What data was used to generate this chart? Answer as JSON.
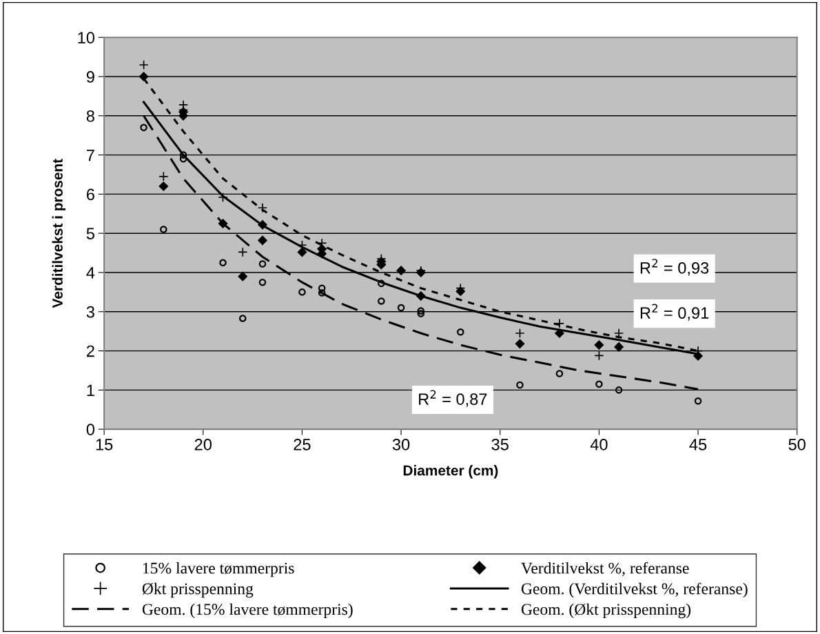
{
  "chart_data": {
    "type": "scatter",
    "xlabel": "Diameter (cm)",
    "ylabel": "Verditilvekst i prosent",
    "xlim": [
      15,
      50
    ],
    "xticks": [
      15,
      20,
      25,
      30,
      35,
      40,
      45,
      50
    ],
    "ylim": [
      0,
      10
    ],
    "yticks": [
      0,
      1,
      2,
      3,
      4,
      5,
      6,
      7,
      8,
      9,
      10
    ],
    "grid": "y",
    "legend": "bottom",
    "series": [
      {
        "name": "15% lavere tømmerpris",
        "marker": "circle",
        "color": "#000000",
        "x": [
          17,
          18,
          19,
          19,
          21,
          22,
          23,
          23,
          25,
          26,
          26,
          29,
          29,
          30,
          31,
          31,
          33,
          36,
          38,
          40,
          41,
          45
        ],
        "values": [
          7.7,
          5.1,
          7.0,
          6.9,
          4.25,
          2.83,
          4.22,
          3.75,
          3.5,
          3.6,
          3.48,
          3.72,
          3.27,
          3.1,
          3.02,
          2.95,
          2.48,
          1.13,
          1.42,
          1.15,
          1.0,
          0.72
        ]
      },
      {
        "name": "Verditilvekst %, referanse",
        "marker": "diamond",
        "color": "#000000",
        "x": [
          17,
          18,
          19,
          19,
          21,
          22,
          23,
          23,
          25,
          26,
          26,
          29,
          29,
          30,
          31,
          31,
          33,
          36,
          38,
          40,
          41,
          45
        ],
        "values": [
          9.0,
          6.2,
          8.1,
          8.0,
          5.25,
          3.9,
          5.22,
          4.82,
          4.52,
          4.6,
          4.48,
          4.28,
          4.2,
          4.05,
          4.0,
          3.4,
          3.52,
          2.18,
          2.45,
          2.15,
          2.1,
          1.87
        ]
      },
      {
        "name": "Økt prisspenning",
        "marker": "cross",
        "color": "#000000",
        "x": [
          17,
          18,
          19,
          19,
          21,
          22,
          23,
          25,
          26,
          26,
          29,
          29,
          31,
          33,
          36,
          38,
          40,
          41,
          45
        ],
        "values": [
          9.3,
          6.45,
          8.28,
          8.15,
          5.92,
          4.52,
          5.65,
          4.7,
          4.75,
          4.62,
          4.35,
          4.22,
          4.05,
          3.6,
          2.45,
          2.7,
          1.88,
          2.45,
          2.0
        ]
      },
      {
        "name": "Geom. (Verditilvekst %, referanse)",
        "type": "line",
        "line_style": "solid",
        "color": "#000000",
        "x": [
          17,
          19,
          21,
          23,
          25,
          27,
          29,
          31,
          33,
          35,
          37,
          39,
          41,
          43,
          45
        ],
        "values": [
          8.35,
          7.0,
          5.95,
          5.2,
          4.65,
          4.15,
          3.75,
          3.4,
          3.1,
          2.85,
          2.62,
          2.45,
          2.28,
          2.1,
          1.92
        ]
      },
      {
        "name": "Geom. (15% lavere tømmerpris)",
        "type": "line",
        "line_style": "dashed",
        "color": "#000000",
        "x": [
          17,
          19,
          21,
          23,
          25,
          27,
          29,
          31,
          33,
          35,
          37,
          39,
          41,
          43,
          45
        ],
        "values": [
          8.0,
          6.4,
          5.25,
          4.4,
          3.75,
          3.2,
          2.8,
          2.45,
          2.15,
          1.9,
          1.7,
          1.5,
          1.35,
          1.2,
          1.02
        ]
      },
      {
        "name": "Geom. (Økt prisspenning)",
        "type": "line",
        "line_style": "dotted",
        "color": "#000000",
        "x": [
          17,
          19,
          21,
          23,
          25,
          27,
          29,
          31,
          33,
          35,
          37,
          39,
          41,
          43,
          45
        ],
        "values": [
          8.95,
          7.6,
          6.4,
          5.6,
          4.95,
          4.45,
          4.0,
          3.6,
          3.3,
          3.0,
          2.78,
          2.55,
          2.35,
          2.2,
          2.0
        ]
      }
    ],
    "annotations": [
      "R$^{2}$ = 0,93",
      "R$^{2}$ = 0,91",
      "R$^{2}$ = 0,87"
    ]
  }
}
